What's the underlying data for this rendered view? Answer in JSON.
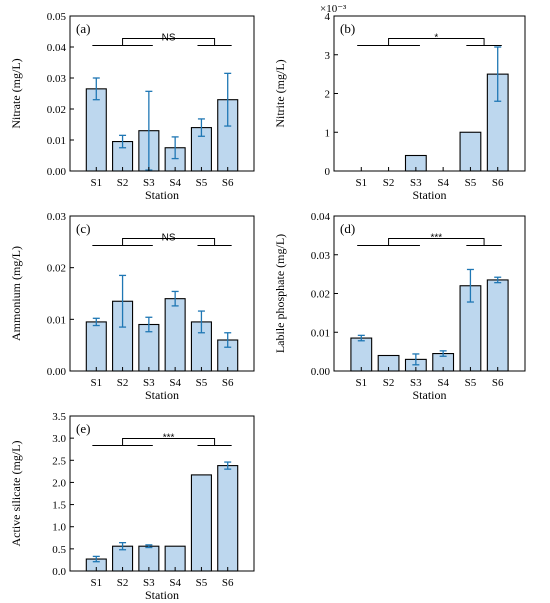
{
  "chart_data": [
    {
      "type": "bar",
      "panel": "(a)",
      "categories": [
        "S1",
        "S2",
        "S3",
        "S4",
        "S5",
        "S6"
      ],
      "values": [
        0.0265,
        0.0095,
        0.013,
        0.0075,
        0.014,
        0.023
      ],
      "errors": [
        0.0035,
        0.002,
        0.0127,
        0.0035,
        0.0028,
        0.0085
      ],
      "xlabel": "Station",
      "ylabel": "Nitrate (mg/L)",
      "ylim": [
        0,
        0.05
      ],
      "yticks": [
        "0.00",
        "0.01",
        "0.02",
        "0.03",
        "0.04",
        "0.05"
      ],
      "exponent": "",
      "significance": "NS",
      "sig_color": "#d62728"
    },
    {
      "type": "bar",
      "panel": "(b)",
      "categories": [
        "S1",
        "S2",
        "S3",
        "S4",
        "S5",
        "S6"
      ],
      "values": [
        0,
        0,
        0.4,
        0,
        1.0,
        2.5
      ],
      "errors": [
        0,
        0,
        0,
        0,
        0,
        0.7
      ],
      "xlabel": "Station",
      "ylabel": "Nitrite (mg/L)",
      "ylim": [
        0,
        4
      ],
      "yticks": [
        "0",
        "1",
        "2",
        "3",
        "4"
      ],
      "exponent": "×10⁻³",
      "significance": "*",
      "sig_color": "#d62728"
    },
    {
      "type": "bar",
      "panel": "(c)",
      "categories": [
        "S1",
        "S2",
        "S3",
        "S4",
        "S5",
        "S6"
      ],
      "values": [
        0.0095,
        0.0135,
        0.009,
        0.014,
        0.0095,
        0.006
      ],
      "errors": [
        0.0007,
        0.005,
        0.0014,
        0.0014,
        0.0021,
        0.0014
      ],
      "xlabel": "Station",
      "ylabel": "Ammonium (mg/L)",
      "ylim": [
        0,
        0.03
      ],
      "yticks": [
        "0.00",
        "0.01",
        "0.02",
        "0.03"
      ],
      "exponent": "",
      "significance": "NS",
      "sig_color": "#d62728"
    },
    {
      "type": "bar",
      "panel": "(d)",
      "categories": [
        "S1",
        "S2",
        "S3",
        "S4",
        "S5",
        "S6"
      ],
      "values": [
        0.0085,
        0.004,
        0.003,
        0.0045,
        0.022,
        0.0235
      ],
      "errors": [
        0.0007,
        0,
        0.0014,
        0.0007,
        0.0042,
        0.0007
      ],
      "xlabel": "Station",
      "ylabel": "Labile phosphate (mg/L)",
      "ylim": [
        0,
        0.04
      ],
      "yticks": [
        "0.00",
        "0.01",
        "0.02",
        "0.03",
        "0.04"
      ],
      "exponent": "",
      "significance": "***",
      "sig_color": "#d62728"
    },
    {
      "type": "bar",
      "panel": "(e)",
      "categories": [
        "S1",
        "S2",
        "S3",
        "S4",
        "S5",
        "S6"
      ],
      "values": [
        0.27,
        0.56,
        0.56,
        0.56,
        2.17,
        2.38
      ],
      "errors": [
        0.06,
        0.08,
        0.03,
        0,
        0,
        0.08
      ],
      "xlabel": "Station",
      "ylabel": "Active silicate (mg/L)",
      "ylim": [
        0,
        3.5
      ],
      "yticks": [
        "0.0",
        "0.5",
        "1.0",
        "1.5",
        "2.0",
        "2.5",
        "3.0",
        "3.5"
      ],
      "exponent": "",
      "significance": "***",
      "sig_color": "#d62728"
    }
  ],
  "style": {
    "bar_fill": "#bdd7ee",
    "bar_stroke": "#000000",
    "errorbar_color": "#1f77b4",
    "axis_color": "#000000"
  }
}
